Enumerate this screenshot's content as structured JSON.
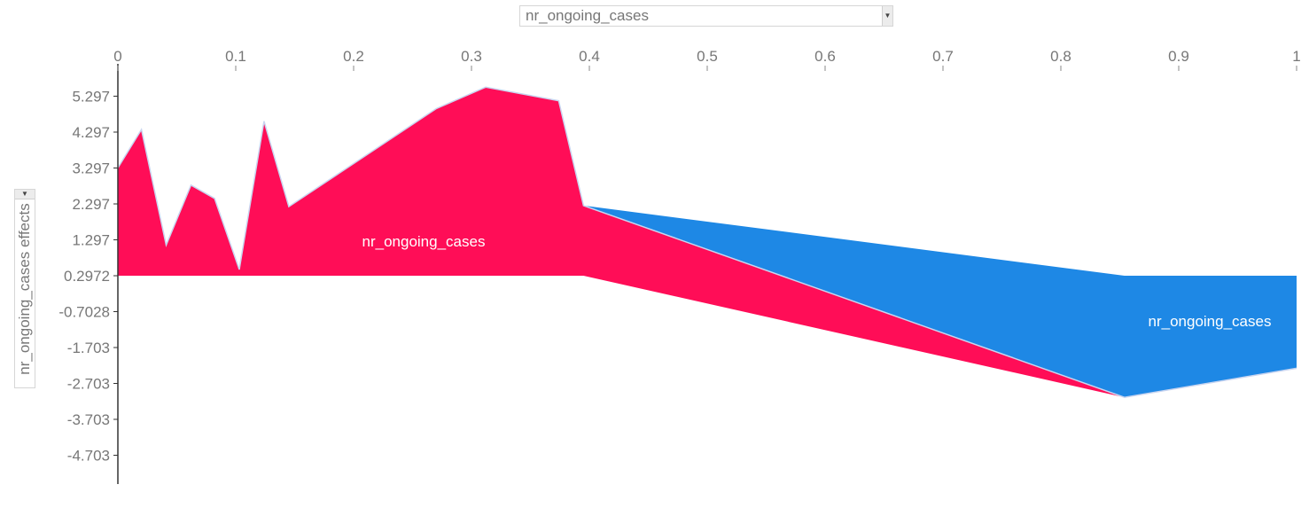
{
  "x_selector": {
    "value": "nr_ongoing_cases"
  },
  "y_selector": {
    "value": "nr_ongoing_cases effects"
  },
  "colors": {
    "positive": "#ff0d57",
    "negative": "#1e88e5",
    "outline": "#c9d5f0",
    "axis": "#333333",
    "tick_text": "#777777"
  },
  "chart_data": {
    "type": "area",
    "x_ticks": [
      "0",
      "0.1",
      "0.2",
      "0.3",
      "0.4",
      "0.5",
      "0.6",
      "0.7",
      "0.8",
      "0.9",
      "1"
    ],
    "x_range": [
      0,
      1
    ],
    "y_ticks": [
      "5.297",
      "4.297",
      "3.297",
      "2.297",
      "1.297",
      "0.2972",
      "-0.7028",
      "-1.703",
      "-2.703",
      "-3.703",
      "-4.703"
    ],
    "y_range": [
      -5.5,
      5.5
    ],
    "baseline": 0.2972,
    "points": [
      {
        "x": 0.0,
        "y": 3.3
      },
      {
        "x": 0.02,
        "y": 4.37
      },
      {
        "x": 0.041,
        "y": 1.15
      },
      {
        "x": 0.062,
        "y": 2.82
      },
      {
        "x": 0.082,
        "y": 2.45
      },
      {
        "x": 0.103,
        "y": 0.47
      },
      {
        "x": 0.124,
        "y": 4.6
      },
      {
        "x": 0.145,
        "y": 2.22
      },
      {
        "x": 0.27,
        "y": 4.95
      },
      {
        "x": 0.312,
        "y": 5.55
      },
      {
        "x": 0.374,
        "y": 5.17
      },
      {
        "x": 0.395,
        "y": 2.25
      },
      {
        "x": 0.854,
        "y": -3.09
      },
      {
        "x": 1.0,
        "y": -2.28
      }
    ],
    "positive_region": {
      "label": "nr_ongoing_cases",
      "upper": [
        [
          0.0,
          3.3
        ],
        [
          0.02,
          4.37
        ],
        [
          0.041,
          1.15
        ],
        [
          0.062,
          2.82
        ],
        [
          0.082,
          2.45
        ],
        [
          0.103,
          0.47
        ],
        [
          0.124,
          4.6
        ],
        [
          0.145,
          2.22
        ],
        [
          0.27,
          4.95
        ],
        [
          0.312,
          5.55
        ],
        [
          0.374,
          5.17
        ],
        [
          0.395,
          2.25
        ],
        [
          0.854,
          -3.09
        ]
      ],
      "lower": [
        [
          0.854,
          -3.09
        ],
        [
          0.395,
          0.2972
        ],
        [
          0.0,
          0.2972
        ]
      ]
    },
    "negative_region": {
      "label": "nr_ongoing_cases",
      "upper": [
        [
          0.395,
          2.25
        ],
        [
          0.854,
          0.2972
        ],
        [
          1.0,
          0.2972
        ],
        [
          1.0,
          -2.28
        ],
        [
          0.854,
          -3.09
        ]
      ]
    }
  }
}
